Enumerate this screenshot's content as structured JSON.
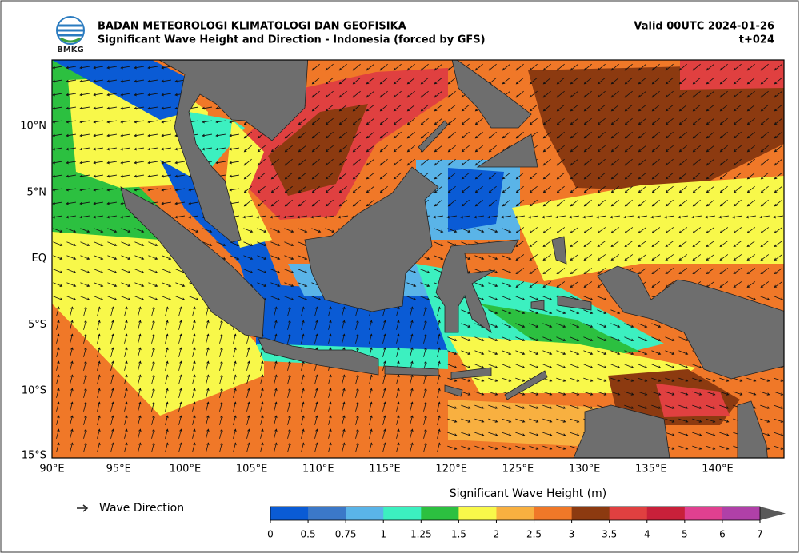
{
  "header": {
    "logo": "BMKG",
    "title": "BADAN METEOROLOGI KLIMATOLOGI DAN GEOFISIKA",
    "subtitle": "Significant Wave Height and Direction - Indonesia (forced by GFS)",
    "valid": "Valid 00UTC 2024-01-26",
    "lead": "t+024"
  },
  "map": {
    "lon_labels": [
      "90°E",
      "95°E",
      "100°E",
      "105°E",
      "110°E",
      "115°E",
      "120°E",
      "125°E",
      "130°E",
      "135°E",
      "140°E"
    ],
    "lat_labels": [
      "10°N",
      "5°N",
      "EQ",
      "5°S",
      "10°S",
      "15°S"
    ]
  },
  "legend": {
    "arrow_label": "Wave Direction"
  },
  "colorbar": {
    "title": "Significant Wave Height (m)",
    "levels": [
      0,
      0.5,
      0.75,
      1,
      1.25,
      1.5,
      2,
      2.5,
      3,
      3.5,
      4,
      5,
      6,
      7
    ],
    "colors": [
      "#0a5bd5",
      "#3b78c8",
      "#5ab4e8",
      "#3cf0c0",
      "#2cc040",
      "#f8f84a",
      "#f8b040",
      "#f07828",
      "#8c3a10",
      "#e04040",
      "#c8203a",
      "#e04090",
      "#b040a8"
    ],
    "extend_color": "#5a5a5a"
  }
}
